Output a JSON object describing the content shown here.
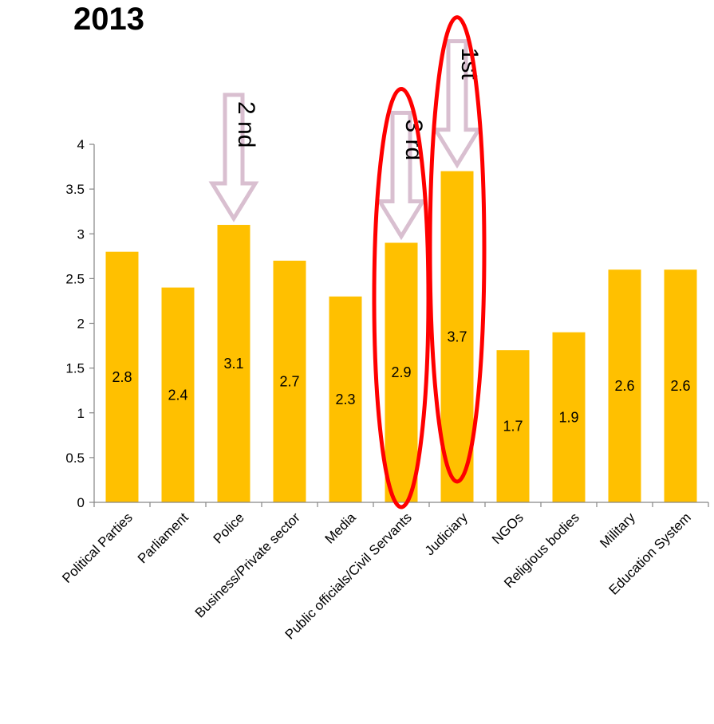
{
  "chart_data": {
    "type": "bar",
    "title": "2013",
    "categories": [
      "Political Parties",
      "Parliament",
      "Police",
      "Business/Private sector",
      "Media",
      "Public officials/Civil Servants",
      "Judiciary",
      "NGOs",
      "Religious bodies",
      "Military",
      "Education System"
    ],
    "values": [
      2.8,
      2.4,
      3.1,
      2.7,
      2.3,
      2.9,
      3.7,
      1.7,
      1.9,
      2.6,
      2.6
    ],
    "data_labels": [
      "2.8",
      "2.4",
      "3.1",
      "2.7",
      "2.3",
      "2.9",
      "3.7",
      "1.7",
      "1.9",
      "2.6",
      "2.6"
    ],
    "ylim": [
      0,
      4
    ],
    "yticks": [
      "0",
      "0.5",
      "1",
      "1.5",
      "2",
      "2.5",
      "3",
      "3.5",
      "4"
    ],
    "ytick_values": [
      0,
      0.5,
      1,
      1.5,
      2,
      2.5,
      3,
      3.5,
      4
    ],
    "grid": false,
    "bar_color": "#FFC000",
    "annotations": [
      {
        "text": "2 nd",
        "category": "Police"
      },
      {
        "text": "3 rd",
        "category": "Public officials/Civil Servants",
        "circled": true
      },
      {
        "text": "1st",
        "category": "Judiciary",
        "circled": true
      }
    ],
    "arrow_color": "#d9bfd0",
    "circle_color": "#ff0000"
  }
}
